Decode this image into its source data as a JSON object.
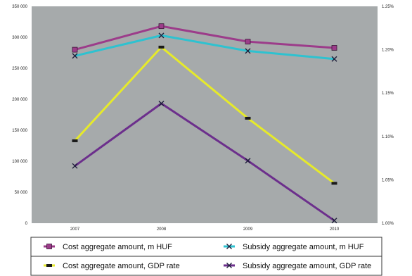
{
  "chart_data": {
    "type": "line",
    "title": "",
    "xlabel": "",
    "ylabel": "",
    "categories": [
      "2007",
      "2008",
      "2009",
      "2010"
    ],
    "y_left": {
      "ticks": [
        "0",
        "50 000",
        "100 000",
        "150 000",
        "200 000",
        "250 000",
        "300 000",
        "350 000"
      ],
      "range": [
        0,
        350000
      ]
    },
    "y_right": {
      "ticks": [
        "1.00%",
        "1.05%",
        "1.10%",
        "1.15%",
        "1.20%",
        "1.25%"
      ],
      "range": [
        1.0,
        1.25
      ]
    },
    "grid": false,
    "plot_background": "#a6aaab",
    "legend_position": "bottom",
    "series": [
      {
        "name": "Cost aggregate amount, m HUF",
        "axis": "left",
        "color": "#9c3c8a",
        "marker": "square",
        "values": [
          280000,
          318000,
          293000,
          283000
        ]
      },
      {
        "name": "Subsidy aggregate amount, m HUF",
        "axis": "left",
        "color": "#2ec2d0",
        "marker": "x",
        "values": [
          270000,
          303000,
          278000,
          265000
        ]
      },
      {
        "name": "Cost aggregate amount, GDP rate",
        "axis": "right",
        "color": "#e6ea2a",
        "marker": "dash",
        "values": [
          1.095,
          1.203,
          1.121,
          1.046
        ]
      },
      {
        "name": "Subsidy aggregate amount, GDP rate",
        "axis": "right",
        "color": "#6c2f8c",
        "marker": "x",
        "values": [
          1.066,
          1.138,
          1.072,
          1.003
        ]
      }
    ]
  }
}
